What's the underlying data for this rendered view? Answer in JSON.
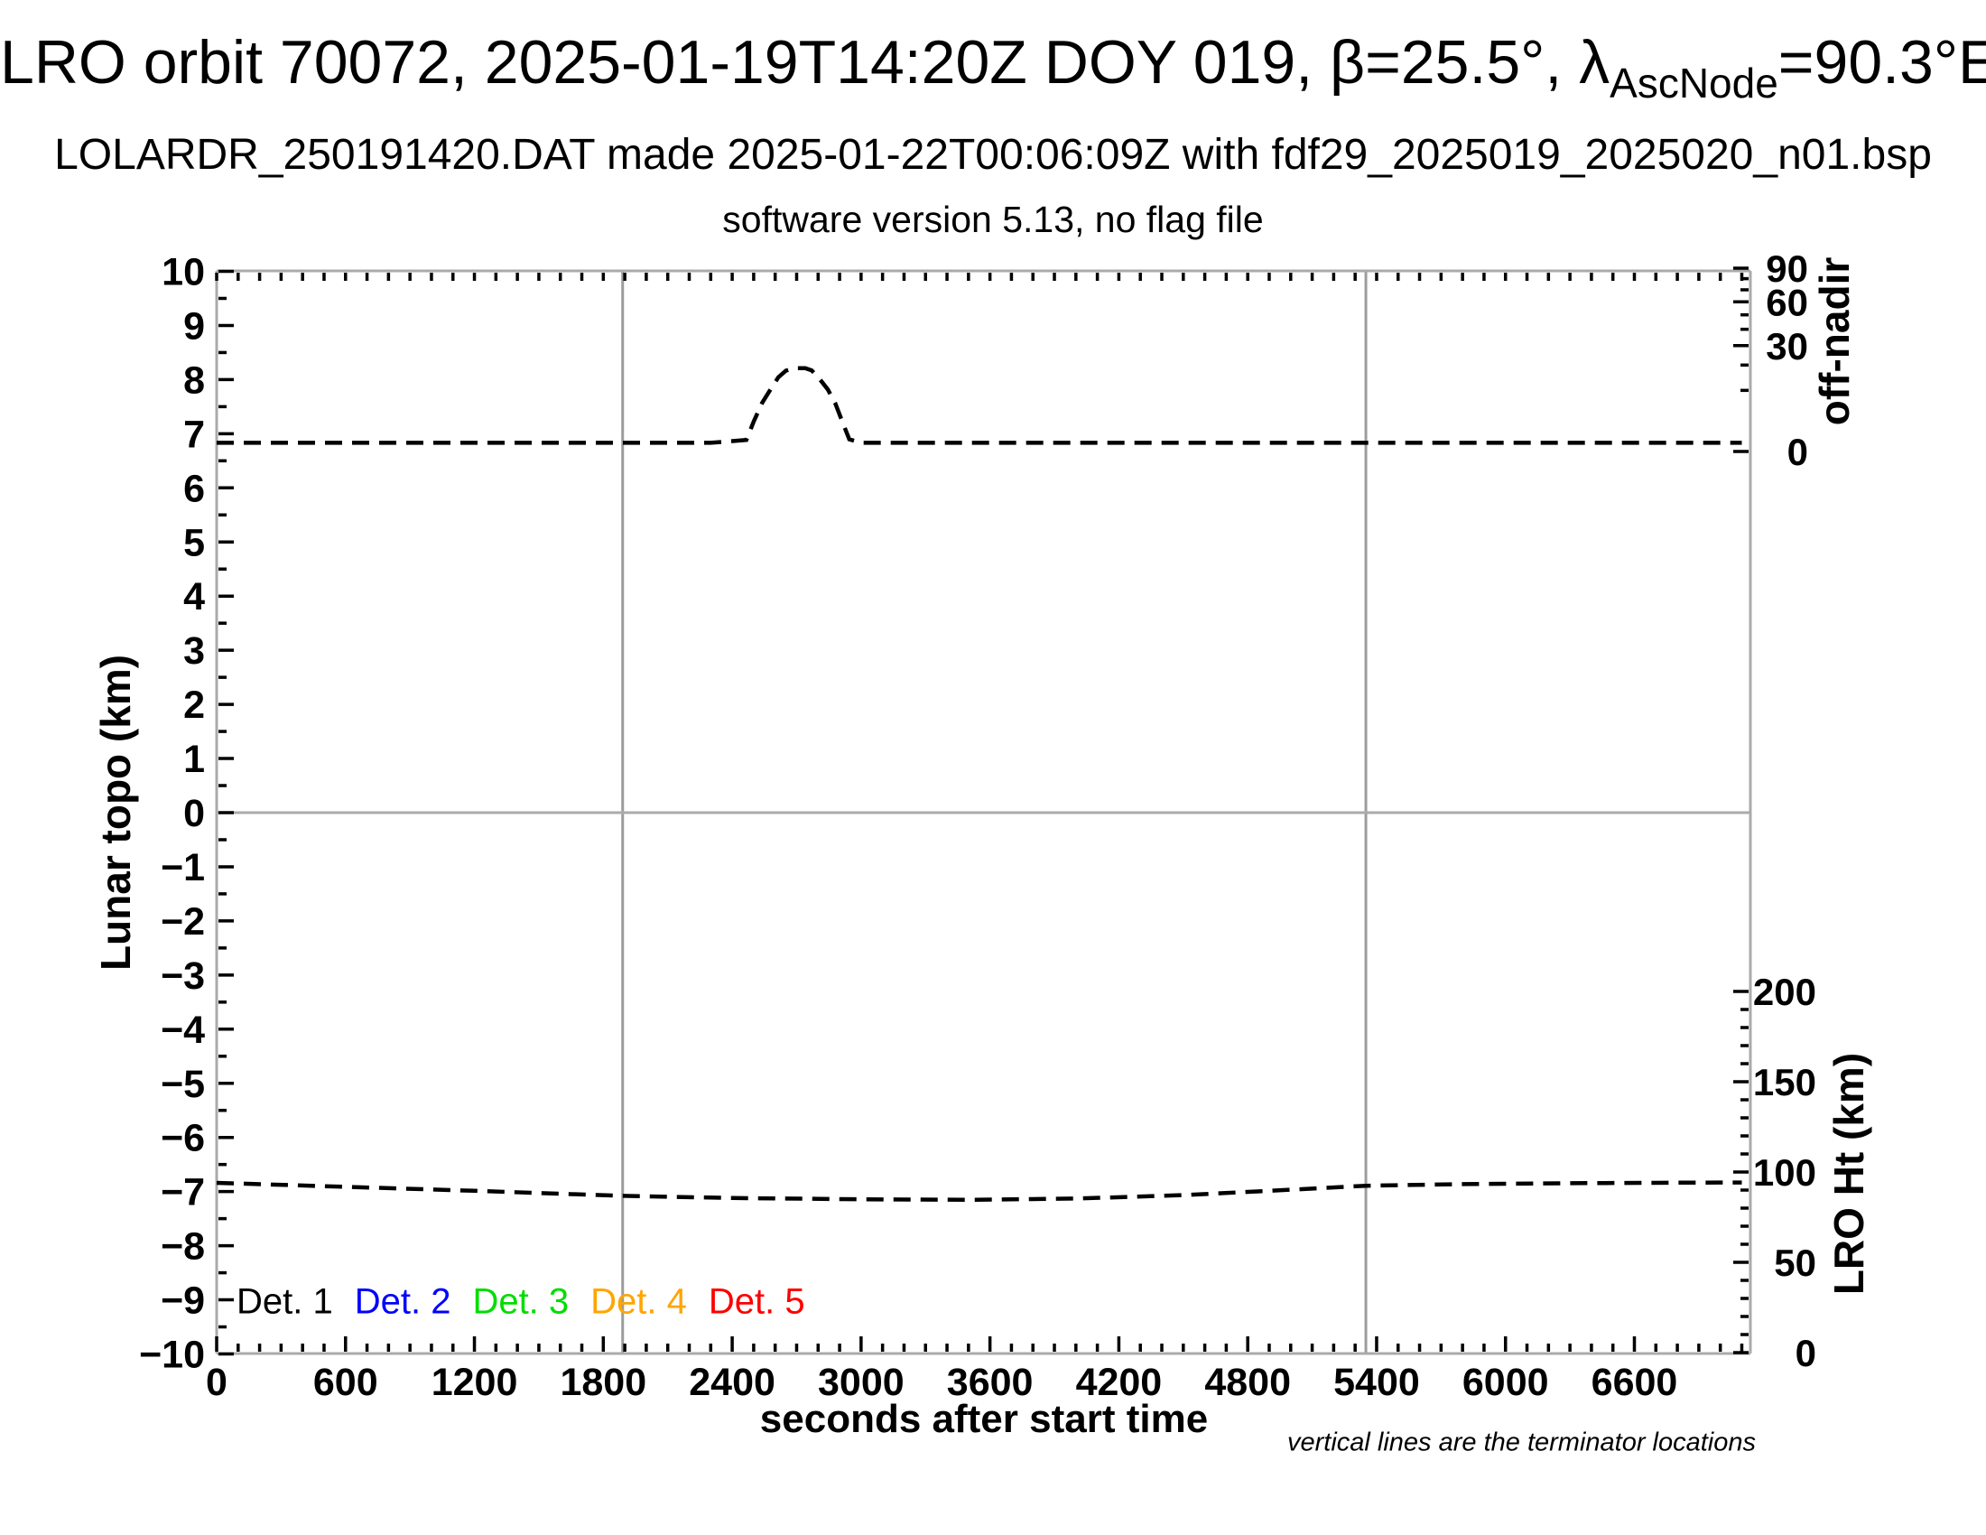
{
  "header": {
    "title_main": "LRO orbit 70072, 2025-01-19T14:20Z DOY 019, β=25.5°, λ",
    "title_subscript": "AscNode",
    "title_tail": "=90.3°E",
    "subtitle": "LOLARDR_250191420.DAT made 2025-01-22T00:06:09Z with fdf29_2025019_2025020_n01.bsp",
    "subtitle2": "software version 5.13, no flag file"
  },
  "chart_data": {
    "type": "line",
    "grid": "terminator verticals and zero horizontal only",
    "x_axis": {
      "label": "seconds after start time",
      "min": 0,
      "max": 7140,
      "minor_step": 100,
      "major_ticks": [
        {
          "v": 0,
          "label": "0"
        },
        {
          "v": 600,
          "label": "600"
        },
        {
          "v": 1200,
          "label": "1200"
        },
        {
          "v": 1800,
          "label": "1800"
        },
        {
          "v": 2400,
          "label": "2400"
        },
        {
          "v": 3000,
          "label": "3000"
        },
        {
          "v": 3600,
          "label": "3600"
        },
        {
          "v": 4200,
          "label": "4200"
        },
        {
          "v": 4800,
          "label": "4800"
        },
        {
          "v": 5400,
          "label": "5400"
        },
        {
          "v": 6000,
          "label": "6000"
        },
        {
          "v": 6600,
          "label": "6600"
        }
      ]
    },
    "y_axis_left": {
      "label": "Lunar topo (km)",
      "min": -10,
      "max": 10,
      "minor_step": 0.5,
      "ticks": [
        {
          "v": 10,
          "label": "10"
        },
        {
          "v": 9,
          "label": "9"
        },
        {
          "v": 8,
          "label": "8"
        },
        {
          "v": 7,
          "label": "7"
        },
        {
          "v": 6,
          "label": "6"
        },
        {
          "v": 5,
          "label": "5"
        },
        {
          "v": 4,
          "label": "4"
        },
        {
          "v": 3,
          "label": "3"
        },
        {
          "v": 2,
          "label": "2"
        },
        {
          "v": 1,
          "label": "1"
        },
        {
          "v": 0,
          "label": "0"
        },
        {
          "v": -1,
          "label": "−1"
        },
        {
          "v": -2,
          "label": "−2"
        },
        {
          "v": -3,
          "label": "−3"
        },
        {
          "v": -4,
          "label": "−4"
        },
        {
          "v": -5,
          "label": "−5"
        },
        {
          "v": -6,
          "label": "−6"
        },
        {
          "v": -7,
          "label": "−7"
        },
        {
          "v": -8,
          "label": "−8"
        },
        {
          "v": -9,
          "label": "−9"
        },
        {
          "v": -10,
          "label": "−10"
        }
      ]
    },
    "y_axis_right_top": {
      "label": "off-nadir",
      "units": "degrees",
      "scale": "sqrt",
      "min": 0,
      "max": 90,
      "minor_step": 10,
      "ticks": [
        {
          "v": 90,
          "label": "90"
        },
        {
          "v": 60,
          "label": "60"
        },
        {
          "v": 30,
          "label": "30"
        },
        {
          "v": 0,
          "label": "0"
        }
      ]
    },
    "y_axis_right_bottom": {
      "label": "LRO Ht (km)",
      "min": 0,
      "max": 200,
      "minor_step": 10,
      "ticks": [
        {
          "v": 200,
          "label": "200"
        },
        {
          "v": 150,
          "label": "150"
        },
        {
          "v": 100,
          "label": "100"
        },
        {
          "v": 50,
          "label": "50"
        },
        {
          "v": 0,
          "label": "0"
        }
      ]
    },
    "series": [
      {
        "name": "off-nadir angle (deg, dashed)",
        "axis": "off_nadir",
        "line_style": "dashed",
        "color": "#000000",
        "points": [
          [
            0,
            0.2
          ],
          [
            600,
            0.2
          ],
          [
            1200,
            0.2
          ],
          [
            1800,
            0.2
          ],
          [
            2300,
            0.2
          ],
          [
            2466,
            0.35
          ],
          [
            2500,
            2.4
          ],
          [
            2540,
            6.4
          ],
          [
            2580,
            10.5
          ],
          [
            2615,
            14.8
          ],
          [
            2650,
            17.5
          ],
          [
            2690,
            18.6
          ],
          [
            2740,
            18.6
          ],
          [
            2770,
            17.6
          ],
          [
            2800,
            14.8
          ],
          [
            2845,
            10.3
          ],
          [
            2880,
            6.2
          ],
          [
            2915,
            2.2
          ],
          [
            2945,
            0.4
          ],
          [
            3000,
            0.2
          ],
          [
            3600,
            0.2
          ],
          [
            4200,
            0.2
          ],
          [
            4800,
            0.2
          ],
          [
            5400,
            0.2
          ],
          [
            6000,
            0.2
          ],
          [
            6600,
            0.2
          ],
          [
            7100,
            0.2
          ]
        ]
      },
      {
        "name": "LRO height (km, dashed)",
        "axis": "lro_ht",
        "line_style": "dashed",
        "color": "#000000",
        "points": [
          [
            0,
            94.0
          ],
          [
            600,
            91.8
          ],
          [
            1200,
            89.6
          ],
          [
            1890,
            86.8
          ],
          [
            2400,
            85.6
          ],
          [
            3000,
            84.9
          ],
          [
            3500,
            84.6
          ],
          [
            4000,
            85.3
          ],
          [
            4500,
            87.2
          ],
          [
            5000,
            90.2
          ],
          [
            5350,
            92.4
          ],
          [
            5800,
            93.3
          ],
          [
            6300,
            93.8
          ],
          [
            6800,
            94.1
          ],
          [
            7100,
            94.2
          ]
        ]
      }
    ],
    "terminator_lines_t": [
      1890,
      5350
    ],
    "zero_line_topo": 0,
    "legend": {
      "items": [
        {
          "label": "Det. 1",
          "color": "#000000"
        },
        {
          "label": "Det. 2",
          "color": "#0000ff"
        },
        {
          "label": "Det. 3",
          "color": "#00dd00"
        },
        {
          "label": "Det. 4",
          "color": "#ffa500"
        },
        {
          "label": "Det. 5",
          "color": "#ff0000"
        }
      ]
    },
    "footnote": "vertical lines are the terminator locations"
  }
}
